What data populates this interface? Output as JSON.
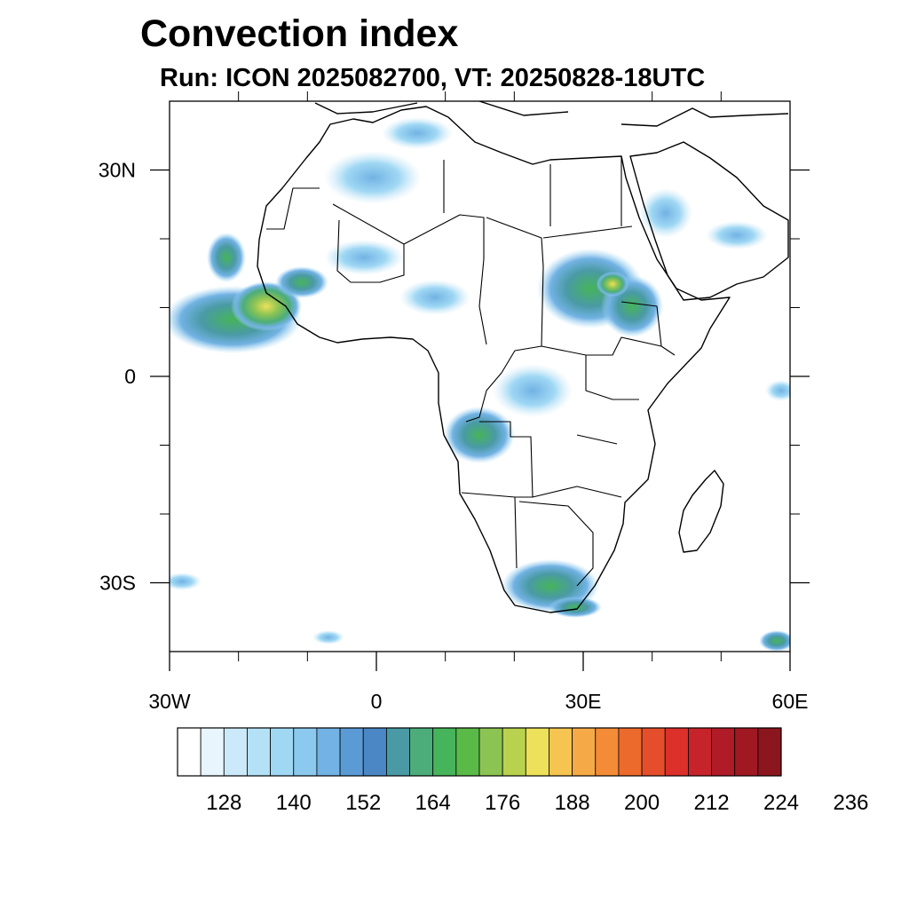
{
  "title": "Convection index",
  "subtitle": "Run: ICON 2025082700,  VT: 20250828-18UTC",
  "map": {
    "lon_range": [
      -30,
      60
    ],
    "lat_range": [
      -40,
      40
    ],
    "x_ticks": [
      {
        "lon": -30,
        "label": "30W"
      },
      {
        "lon": 0,
        "label": "0"
      },
      {
        "lon": 30,
        "label": "30E"
      },
      {
        "lon": 60,
        "label": "60E"
      }
    ],
    "y_ticks": [
      {
        "lat": 30,
        "label": "30N"
      },
      {
        "lat": 0,
        "label": "0"
      },
      {
        "lat": -30,
        "label": "30S"
      }
    ],
    "minor_x": [
      -20,
      -10,
      10,
      20,
      40,
      50
    ],
    "minor_y": [
      20,
      10,
      -10,
      -20
    ]
  },
  "colorbar": {
    "colors": [
      "#ffffff",
      "#e8f5fc",
      "#cbe9f8",
      "#b4e1f6",
      "#a0d8f4",
      "#8cc9ee",
      "#72b2e4",
      "#5b9bd5",
      "#4a87c4",
      "#4a9aa5",
      "#4cad7a",
      "#46b45a",
      "#5aba48",
      "#8cc453",
      "#b8d24f",
      "#ede05a",
      "#f6c551",
      "#f6aa47",
      "#f38b37",
      "#ec6a2c",
      "#e54e2b",
      "#dd302b",
      "#c7232a",
      "#b01b28",
      "#a01822",
      "#8b161d"
    ],
    "labels": [
      "128",
      "140",
      "152",
      "164",
      "176",
      "188",
      "200",
      "212",
      "224",
      "236"
    ],
    "label_start_index": 2,
    "label_step": 3
  }
}
